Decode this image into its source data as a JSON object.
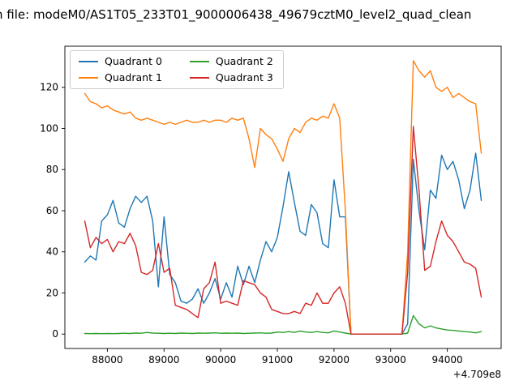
{
  "chart_data": {
    "type": "line",
    "title": "n file: modeM0/AS1T05_233T01_9000006438_49679cztM0_level2_quad_clean",
    "x_offset_label": "+4.709e8",
    "xlim": [
      87250,
      94950
    ],
    "ylim": [
      -7,
      140
    ],
    "xticks": [
      88000,
      89000,
      90000,
      91000,
      92000,
      93000,
      94000
    ],
    "yticks": [
      0,
      20,
      40,
      60,
      80,
      100,
      120
    ],
    "grid": false,
    "legend_position": "upper left",
    "x": [
      87600,
      87700,
      87800,
      87900,
      88000,
      88100,
      88200,
      88300,
      88400,
      88500,
      88600,
      88700,
      88800,
      88900,
      89000,
      89100,
      89200,
      89300,
      89400,
      89500,
      89600,
      89700,
      89800,
      89900,
      90000,
      90100,
      90200,
      90300,
      90400,
      90500,
      90600,
      90700,
      90800,
      90900,
      91000,
      91100,
      91200,
      91300,
      91400,
      91500,
      91600,
      91700,
      91800,
      91900,
      92000,
      92100,
      92200,
      92300,
      92400,
      92500,
      92600,
      92700,
      92800,
      92900,
      93000,
      93100,
      93200,
      93300,
      93400,
      93500,
      93600,
      93700,
      93800,
      93900,
      94000,
      94100,
      94200,
      94300,
      94400,
      94500,
      94600
    ],
    "series": [
      {
        "name": "Quadrant 0",
        "color": "#1f77b4",
        "values": [
          35,
          38,
          36,
          55,
          58,
          65,
          54,
          52,
          61,
          67,
          64,
          67,
          55,
          23,
          57,
          29,
          25,
          16,
          15,
          17,
          22,
          15,
          20,
          27,
          17,
          25,
          18,
          33,
          24,
          33,
          25,
          36,
          45,
          40,
          47,
          62,
          79,
          64,
          50,
          48,
          63,
          59,
          44,
          42,
          75,
          57,
          57,
          0,
          0,
          0,
          0,
          0,
          0,
          0,
          0,
          0,
          0,
          5,
          85,
          60,
          41,
          70,
          66,
          87,
          80,
          84,
          75,
          61,
          70,
          88,
          65
        ]
      },
      {
        "name": "Quadrant 1",
        "color": "#ff7f0e",
        "values": [
          117,
          113,
          112,
          110,
          111,
          109,
          108,
          107,
          108,
          105,
          104,
          105,
          104,
          103,
          102,
          103,
          102,
          103,
          104,
          103,
          103,
          104,
          103,
          104,
          104,
          103,
          105,
          104,
          105,
          95,
          81,
          100,
          97,
          95,
          90,
          84,
          95,
          100,
          98,
          103,
          105,
          104,
          106,
          105,
          112,
          105,
          60,
          0,
          0,
          0,
          0,
          0,
          0,
          0,
          0,
          0,
          0,
          40,
          133,
          128,
          125,
          128,
          120,
          118,
          120,
          115,
          117,
          115,
          113,
          112,
          88
        ]
      },
      {
        "name": "Quadrant 2",
        "color": "#2ca02c",
        "values": [
          0.3,
          0.2,
          0.3,
          0.2,
          0.3,
          0.2,
          0.3,
          0.4,
          0.3,
          0.5,
          0.4,
          0.8,
          0.5,
          0.4,
          0.3,
          0.4,
          0.3,
          0.5,
          0.4,
          0.3,
          0.5,
          0.4,
          0.5,
          0.6,
          0.4,
          0.5,
          0.4,
          0.5,
          0.3,
          0.4,
          0.5,
          0.6,
          0.4,
          0.5,
          1.0,
          0.8,
          1.2,
          0.8,
          1.5,
          1.0,
          0.8,
          1.2,
          0.8,
          0.6,
          1.5,
          1.0,
          0.5,
          0,
          0,
          0,
          0,
          0,
          0,
          0,
          0,
          0,
          0,
          0.5,
          9,
          5,
          3,
          4,
          3,
          2.5,
          2,
          1.8,
          1.5,
          1.2,
          1.0,
          0.6,
          1.2
        ]
      },
      {
        "name": "Quadrant 3",
        "color": "#d62728",
        "values": [
          55,
          42,
          47,
          44,
          46,
          40,
          45,
          44,
          49,
          43,
          30,
          29,
          31,
          44,
          30,
          32,
          14,
          13,
          12,
          10,
          8,
          22,
          25,
          35,
          15,
          16,
          15,
          14,
          26,
          25,
          24,
          20,
          18,
          12,
          11,
          10,
          10,
          11,
          10,
          15,
          14,
          20,
          15,
          15,
          20,
          23,
          15,
          0,
          0,
          0,
          0,
          0,
          0,
          0,
          0,
          0,
          0,
          30,
          101,
          70,
          31,
          33,
          45,
          55,
          48,
          45,
          40,
          35,
          34,
          32,
          18
        ]
      }
    ]
  }
}
